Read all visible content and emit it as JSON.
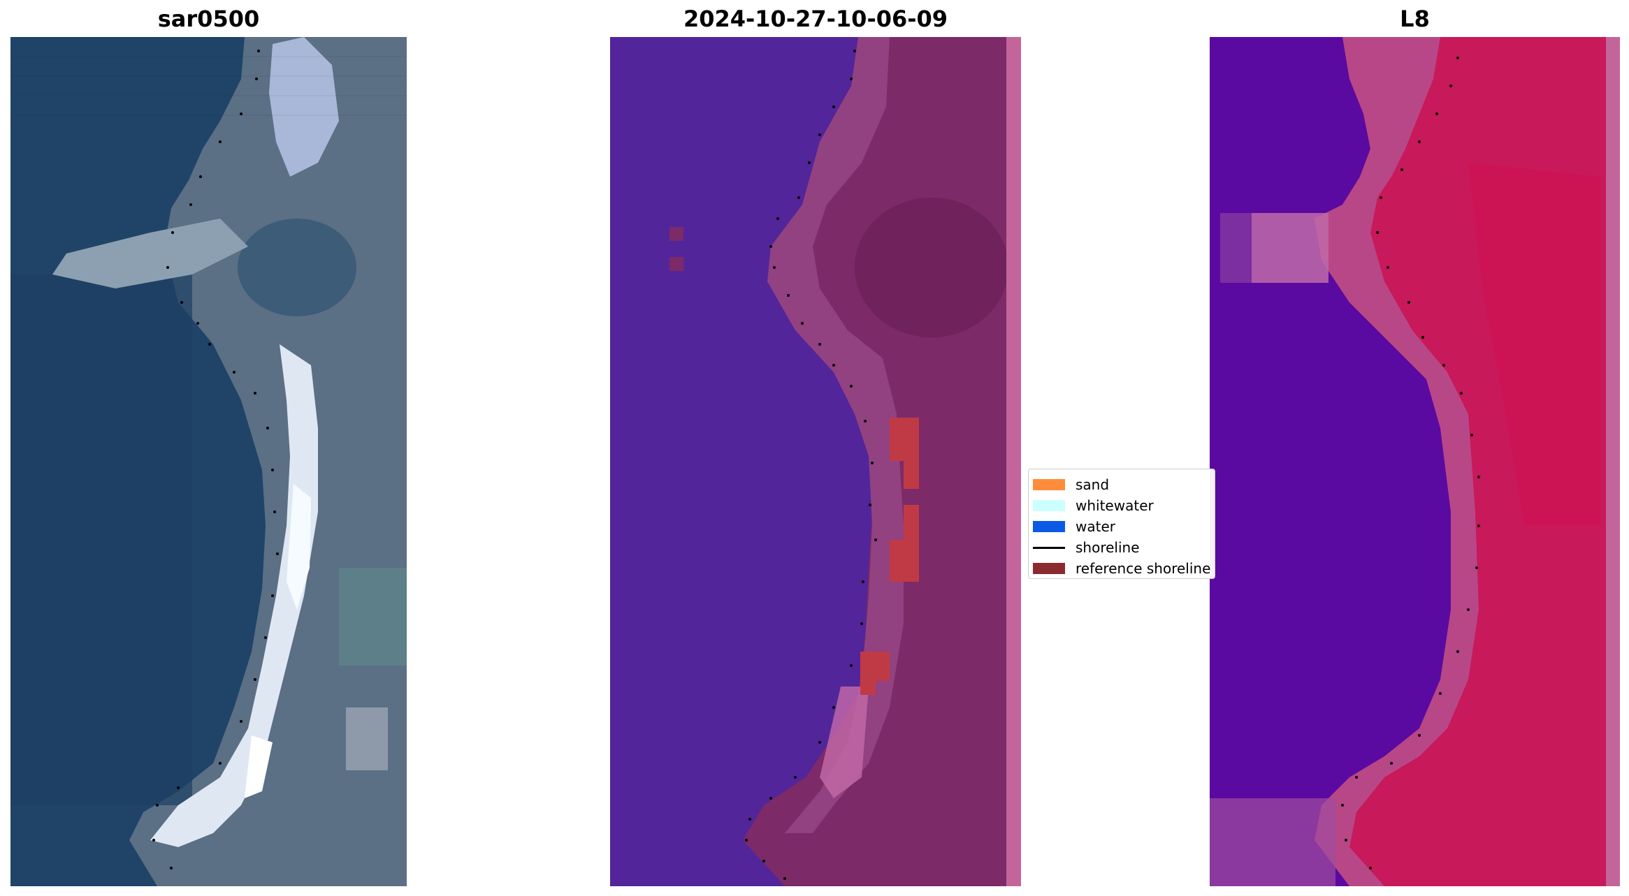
{
  "panels": [
    {
      "title": "sar0500",
      "kind": "rgb-imagery"
    },
    {
      "title": "2024-10-27-10-06-09",
      "kind": "classification-overlay"
    },
    {
      "title": "L8",
      "kind": "false-color-index"
    }
  ],
  "legend": {
    "placement": "center-right-of-middle-panel",
    "items": [
      {
        "label": "sand",
        "type": "patch",
        "color": "#ff8c3a"
      },
      {
        "label": "whitewater",
        "type": "patch",
        "color": "#ccffff"
      },
      {
        "label": "water",
        "type": "patch",
        "color": "#0a5ae6"
      },
      {
        "label": "shoreline",
        "type": "line",
        "color": "#000000"
      },
      {
        "label": "reference shoreline",
        "type": "patch",
        "color": "#8b2a2f"
      }
    ]
  },
  "colors": {
    "rgb_water": "#1f4468",
    "rgb_land": "#5d7084",
    "rgb_sand": "#e6eef5",
    "class_water": "#53259a",
    "class_land": "#7d2a68",
    "class_reference": "#c03a45",
    "index_water": "#5a0aa0",
    "index_land": "#c8195a"
  }
}
